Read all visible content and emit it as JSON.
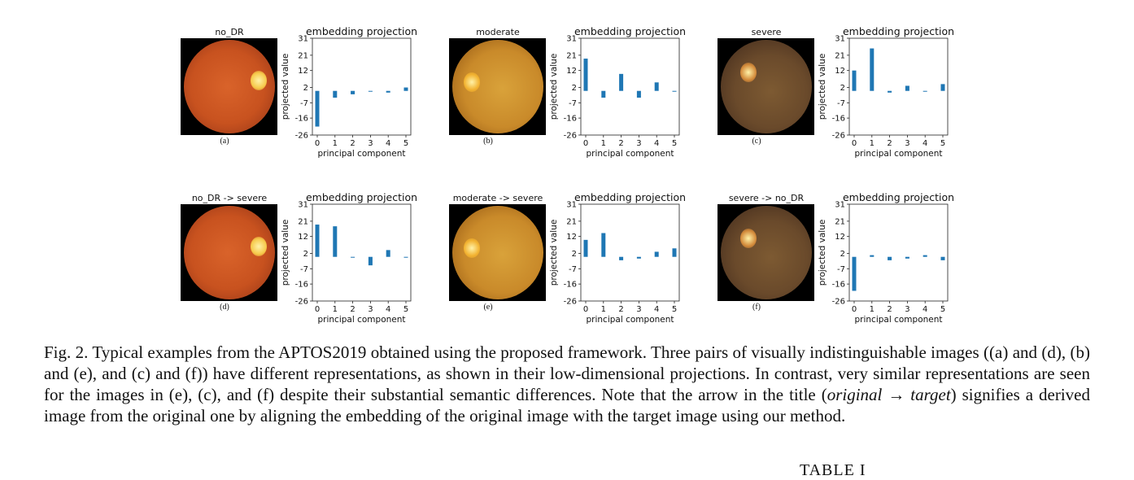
{
  "figures": [
    {
      "label": "(a)",
      "title": "no_DR",
      "palette": "no_dr"
    },
    {
      "label": "(b)",
      "title": "moderate",
      "palette": "moderate"
    },
    {
      "label": "(c)",
      "title": "severe",
      "palette": "severe"
    },
    {
      "label": "(d)",
      "title": "no_DR -> severe",
      "palette": "no_dr"
    },
    {
      "label": "(e)",
      "title": "moderate -> severe",
      "palette": "moderate"
    },
    {
      "label": "(f)",
      "title": "severe -> no_DR",
      "palette": "severe"
    }
  ],
  "chart_data": [
    {
      "type": "bar",
      "title": "embedding projection",
      "xlabel": "principal component",
      "ylabel": "projected value",
      "x": [
        0,
        1,
        2,
        3,
        4,
        5
      ],
      "yticks": [
        31,
        21,
        12,
        2,
        -7,
        -16,
        -26
      ],
      "ylim": [
        -26,
        31
      ],
      "values": [
        -21,
        -4,
        -2,
        0,
        -1,
        2
      ]
    },
    {
      "type": "bar",
      "title": "embedding projection",
      "xlabel": "principal component",
      "ylabel": "projected value",
      "x": [
        0,
        1,
        2,
        3,
        4,
        5
      ],
      "yticks": [
        31,
        21,
        12,
        2,
        -7,
        -16,
        -26
      ],
      "ylim": [
        -26,
        31
      ],
      "values": [
        19,
        -4,
        10,
        -4,
        5,
        0
      ]
    },
    {
      "type": "bar",
      "title": "embedding projection",
      "xlabel": "principal component",
      "ylabel": "projected value",
      "x": [
        0,
        1,
        2,
        3,
        4,
        5
      ],
      "yticks": [
        31,
        21,
        12,
        2,
        -7,
        -16,
        -26
      ],
      "ylim": [
        -26,
        31
      ],
      "values": [
        12,
        25,
        -1,
        3,
        0,
        4
      ]
    },
    {
      "type": "bar",
      "title": "embedding projection",
      "xlabel": "principal component",
      "ylabel": "projected value",
      "x": [
        0,
        1,
        2,
        3,
        4,
        5
      ],
      "yticks": [
        31,
        21,
        12,
        2,
        -7,
        -16,
        -26
      ],
      "ylim": [
        -26,
        31
      ],
      "values": [
        19,
        18,
        0,
        -5,
        4,
        0
      ]
    },
    {
      "type": "bar",
      "title": "embedding projection",
      "xlabel": "principal component",
      "ylabel": "projected value",
      "x": [
        0,
        1,
        2,
        3,
        4,
        5
      ],
      "yticks": [
        31,
        21,
        12,
        2,
        -7,
        -16,
        -26
      ],
      "ylim": [
        -26,
        31
      ],
      "values": [
        10,
        14,
        -2,
        -1,
        3,
        5
      ]
    },
    {
      "type": "bar",
      "title": "embedding projection",
      "xlabel": "principal component",
      "ylabel": "projected value",
      "x": [
        0,
        1,
        2,
        3,
        4,
        5
      ],
      "yticks": [
        31,
        21,
        12,
        2,
        -7,
        -16,
        -26
      ],
      "ylim": [
        -26,
        31
      ],
      "values": [
        -20,
        1,
        -2,
        -1,
        1,
        -2
      ]
    }
  ],
  "caption": {
    "part1": "Fig. 2.  Typical examples from the APTOS2019 obtained using the proposed framework. Three pairs of visually indistinguishable images ((a) and (d), (b) and (e), and (c) and (f)) have different representations, as shown in their low-dimensional projections. In contrast, very similar representations are seen for the images in (e), (c), and (f) despite their substantial semantic differences. Note that the arrow in the title (",
    "math": "original → target",
    "part2": ") signifies a derived image from the original one by aligning the embedding of the original image with the target image using our method."
  },
  "table_heading": "TABLE I",
  "colors": {
    "bar": "#1f77b4",
    "text": "#111111"
  }
}
